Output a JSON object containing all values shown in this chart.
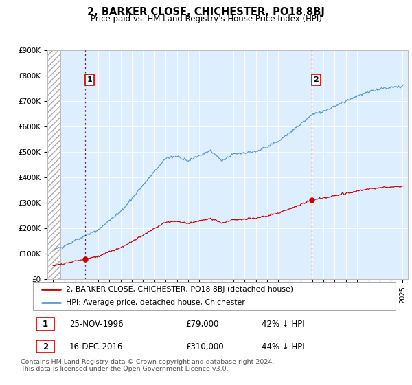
{
  "title": "2, BARKER CLOSE, CHICHESTER, PO18 8BJ",
  "subtitle": "Price paid vs. HM Land Registry's House Price Index (HPI)",
  "ylim": [
    0,
    900000
  ],
  "yticks": [
    0,
    100000,
    200000,
    300000,
    400000,
    500000,
    600000,
    700000,
    800000,
    900000
  ],
  "ytick_labels": [
    "£0",
    "£100K",
    "£200K",
    "£300K",
    "£400K",
    "£500K",
    "£600K",
    "£700K",
    "£800K",
    "£900K"
  ],
  "background_color": "#ffffff",
  "plot_bg_color": "#ddeeff",
  "hpi_color": "#5599cc",
  "price_color": "#cc0000",
  "marker_color": "#cc0000",
  "sale1_year": 1996,
  "sale1_month": 11,
  "sale1_price": 79000,
  "sale2_year": 2016,
  "sale2_month": 12,
  "sale2_price": 310000,
  "legend_line1": "2, BARKER CLOSE, CHICHESTER, PO18 8BJ (detached house)",
  "legend_line2": "HPI: Average price, detached house, Chichester",
  "info1_label": "1",
  "info1_date": "25-NOV-1996",
  "info1_price": "£79,000",
  "info1_hpi": "42% ↓ HPI",
  "info2_label": "2",
  "info2_date": "16-DEC-2016",
  "info2_price": "£310,000",
  "info2_hpi": "44% ↓ HPI",
  "footer": "Contains HM Land Registry data © Crown copyright and database right 2024.\nThis data is licensed under the Open Government Licence v3.0.",
  "xlim_start": 1993.5,
  "xlim_end": 2025.5,
  "hatch_end": 1994.67
}
